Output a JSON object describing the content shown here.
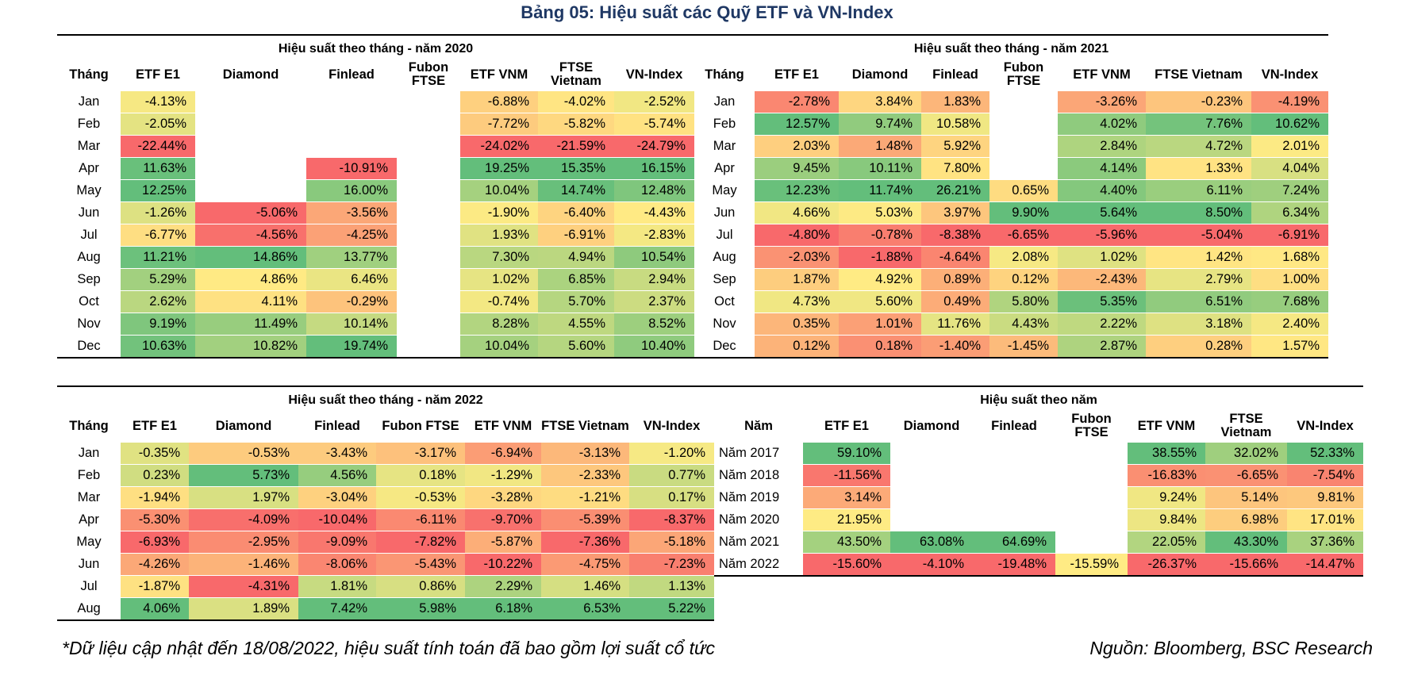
{
  "title": "Bảng 05: Hiệu suất các Quỹ ETF và VN-Index",
  "month_label": "Tháng",
  "year_label": "Năm",
  "columns": [
    "ETF E1",
    "Diamond",
    "Finlead",
    "Fubon FTSE",
    "ETF VNM",
    "FTSE Vietnam",
    "VN-Index"
  ],
  "headers_2020": [
    "ETF E1",
    "Diamond",
    "Finlead",
    "Fubon FTSE",
    "ETF VNM",
    "FTSE Vietnam",
    "VN-Index"
  ],
  "headers_2021": [
    "ETF E1",
    "Diamond",
    "Finlead",
    "Fubon FTSE",
    "ETF VNM",
    "FTSE Vietnam",
    "VN-Index"
  ],
  "headers_2022": [
    "ETF E1",
    "Diamond",
    "Finlead",
    "Fubon FTSE",
    "ETF VNM",
    "FTSE Vietnam",
    "VN-Index"
  ],
  "headers_annual": [
    "ETF E1",
    "Diamond",
    "Finlead",
    "Fubon FTSE",
    "ETF VNM",
    "FTSE Vietnam",
    "VN-Index"
  ],
  "palette": {
    "green": "#63be7b",
    "yellow": "#ffeb84",
    "red": "#f8696b"
  },
  "tables": {
    "t2020": {
      "title": "Hiệu suất theo tháng - năm 2020",
      "rows": [
        {
          "label": "Jan",
          "values": [
            "-4.13%",
            "",
            "",
            "",
            "-6.88%",
            "-4.02%",
            "-2.52%"
          ]
        },
        {
          "label": "Feb",
          "values": [
            "-2.05%",
            "",
            "",
            "",
            "-7.72%",
            "-5.82%",
            "-5.74%"
          ]
        },
        {
          "label": "Mar",
          "values": [
            "-22.44%",
            "",
            "",
            "",
            "-24.02%",
            "-21.59%",
            "-24.79%"
          ]
        },
        {
          "label": "Apr",
          "values": [
            "11.63%",
            "",
            "-10.91%",
            "",
            "19.25%",
            "15.35%",
            "16.15%"
          ]
        },
        {
          "label": "May",
          "values": [
            "12.25%",
            "",
            "16.00%",
            "",
            "10.04%",
            "14.74%",
            "12.48%"
          ]
        },
        {
          "label": "Jun",
          "values": [
            "-1.26%",
            "-5.06%",
            "-3.56%",
            "",
            "-1.90%",
            "-6.40%",
            "-4.43%"
          ]
        },
        {
          "label": "Jul",
          "values": [
            "-6.77%",
            "-4.56%",
            "-4.25%",
            "",
            "1.93%",
            "-6.91%",
            "-2.83%"
          ]
        },
        {
          "label": "Aug",
          "values": [
            "11.21%",
            "14.86%",
            "13.77%",
            "",
            "7.30%",
            "4.94%",
            "10.54%"
          ]
        },
        {
          "label": "Sep",
          "values": [
            "5.29%",
            "4.86%",
            "6.46%",
            "",
            "1.02%",
            "6.85%",
            "2.94%"
          ]
        },
        {
          "label": "Oct",
          "values": [
            "2.62%",
            "4.11%",
            "-0.29%",
            "",
            "-0.74%",
            "5.70%",
            "2.37%"
          ]
        },
        {
          "label": "Nov",
          "values": [
            "9.19%",
            "11.49%",
            "10.14%",
            "",
            "8.28%",
            "4.55%",
            "8.52%"
          ]
        },
        {
          "label": "Dec",
          "values": [
            "10.63%",
            "10.82%",
            "19.74%",
            "",
            "10.04%",
            "5.60%",
            "10.40%"
          ]
        }
      ]
    },
    "t2021": {
      "title": "Hiệu suất theo tháng - năm 2021",
      "rows": [
        {
          "label": "Jan",
          "values": [
            "-2.78%",
            "3.84%",
            "1.83%",
            "",
            "-3.26%",
            "-0.23%",
            "-4.19%"
          ]
        },
        {
          "label": "Feb",
          "values": [
            "12.57%",
            "9.74%",
            "10.58%",
            "",
            "4.02%",
            "7.76%",
            "10.62%"
          ]
        },
        {
          "label": "Mar",
          "values": [
            "2.03%",
            "1.48%",
            "5.92%",
            "",
            "2.84%",
            "4.72%",
            "2.01%"
          ]
        },
        {
          "label": "Apr",
          "values": [
            "9.45%",
            "10.11%",
            "7.80%",
            "",
            "4.14%",
            "1.33%",
            "4.04%"
          ]
        },
        {
          "label": "May",
          "values": [
            "12.23%",
            "11.74%",
            "26.21%",
            "0.65%",
            "4.40%",
            "6.11%",
            "7.24%"
          ]
        },
        {
          "label": "Jun",
          "values": [
            "4.66%",
            "5.03%",
            "3.97%",
            "9.90%",
            "5.64%",
            "8.50%",
            "6.34%"
          ]
        },
        {
          "label": "Jul",
          "values": [
            "-4.80%",
            "-0.78%",
            "-8.38%",
            "-6.65%",
            "-5.96%",
            "-5.04%",
            "-6.91%"
          ]
        },
        {
          "label": "Aug",
          "values": [
            "-2.03%",
            "-1.88%",
            "-4.64%",
            "2.08%",
            "1.02%",
            "1.42%",
            "1.68%"
          ]
        },
        {
          "label": "Sep",
          "values": [
            "1.87%",
            "4.92%",
            "0.89%",
            "0.12%",
            "-2.43%",
            "2.79%",
            "1.00%"
          ]
        },
        {
          "label": "Oct",
          "values": [
            "4.73%",
            "5.60%",
            "0.49%",
            "5.80%",
            "5.35%",
            "6.51%",
            "7.68%"
          ]
        },
        {
          "label": "Nov",
          "values": [
            "0.35%",
            "1.01%",
            "11.76%",
            "4.43%",
            "2.22%",
            "3.18%",
            "2.40%"
          ]
        },
        {
          "label": "Dec",
          "values": [
            "0.12%",
            "0.18%",
            "-1.40%",
            "-1.45%",
            "2.87%",
            "0.28%",
            "1.57%"
          ]
        }
      ]
    },
    "t2022": {
      "title": "Hiệu suất theo tháng - năm 2022",
      "rows": [
        {
          "label": "Jan",
          "values": [
            "-0.35%",
            "-0.53%",
            "-3.43%",
            "-3.17%",
            "-6.94%",
            "-3.13%",
            "-1.20%"
          ]
        },
        {
          "label": "Feb",
          "values": [
            "0.23%",
            "5.73%",
            "4.56%",
            "0.18%",
            "-1.29%",
            "-2.33%",
            "0.77%"
          ]
        },
        {
          "label": "Mar",
          "values": [
            "-1.94%",
            "1.97%",
            "-3.04%",
            "-0.53%",
            "-3.28%",
            "-1.21%",
            "0.17%"
          ]
        },
        {
          "label": "Apr",
          "values": [
            "-5.30%",
            "-4.09%",
            "-10.04%",
            "-6.11%",
            "-9.70%",
            "-5.39%",
            "-8.37%"
          ]
        },
        {
          "label": "May",
          "values": [
            "-6.93%",
            "-2.95%",
            "-9.09%",
            "-7.82%",
            "-5.87%",
            "-7.36%",
            "-5.18%"
          ]
        },
        {
          "label": "Jun",
          "values": [
            "-4.26%",
            "-1.46%",
            "-8.06%",
            "-5.43%",
            "-10.22%",
            "-4.75%",
            "-7.23%"
          ]
        },
        {
          "label": "Jul",
          "values": [
            "-1.87%",
            "-4.31%",
            "1.81%",
            "0.86%",
            "2.29%",
            "1.46%",
            "1.13%"
          ]
        },
        {
          "label": "Aug",
          "values": [
            "4.06%",
            "1.89%",
            "7.42%",
            "5.98%",
            "6.18%",
            "6.53%",
            "5.22%"
          ]
        }
      ]
    },
    "annual": {
      "title": "Hiệu suất theo năm",
      "rows": [
        {
          "label": "Năm 2017",
          "values": [
            "59.10%",
            "",
            "",
            "",
            "38.55%",
            "32.02%",
            "52.33%"
          ]
        },
        {
          "label": "Năm 2018",
          "values": [
            "-11.56%",
            "",
            "",
            "",
            "-16.83%",
            "-6.65%",
            "-7.54%"
          ]
        },
        {
          "label": "Năm 2019",
          "values": [
            "3.14%",
            "",
            "",
            "",
            "9.24%",
            "5.14%",
            "9.81%"
          ]
        },
        {
          "label": "Năm 2020",
          "values": [
            "21.95%",
            "",
            "",
            "",
            "9.84%",
            "6.98%",
            "17.01%"
          ]
        },
        {
          "label": "Năm 2021",
          "values": [
            "43.50%",
            "63.08%",
            "64.69%",
            "",
            "22.05%",
            "43.30%",
            "37.36%"
          ]
        },
        {
          "label": "Năm 2022",
          "values": [
            "-15.60%",
            "-4.10%",
            "-19.48%",
            "-15.59%",
            "-26.37%",
            "-15.66%",
            "-14.47%"
          ]
        }
      ]
    }
  },
  "footnote": "*Dữ liệu cập nhật đến 18/08/2022, hiệu suất tính toán đã bao gồm lợi suất cổ tức",
  "source": "Nguồn: Bloomberg, BSC Research"
}
